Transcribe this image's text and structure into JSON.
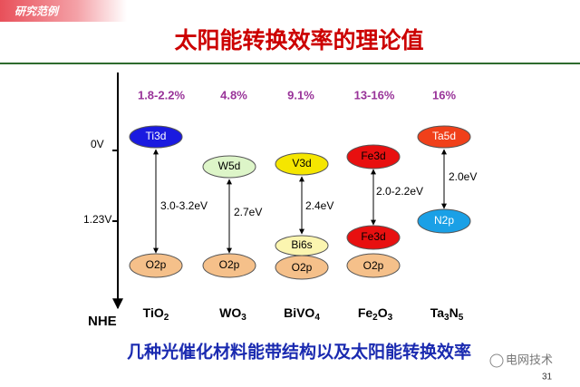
{
  "header": {
    "tag": "研究范例",
    "title": "太阳能转换效率的理论值"
  },
  "axis": {
    "levels": [
      "0V",
      "1.23V"
    ],
    "reference": "NHE"
  },
  "materials": [
    {
      "efficiency": "1.8-2.2%",
      "bands": [
        "Ti3d",
        "O2p"
      ],
      "gap": "3.0-3.2eV",
      "name": [
        "TiO",
        "2"
      ]
    },
    {
      "efficiency": "4.8%",
      "bands": [
        "W5d",
        "O2p"
      ],
      "gap": "2.7eV",
      "name": [
        "WO",
        "3"
      ]
    },
    {
      "efficiency": "9.1%",
      "bands": [
        "V3d",
        "Bi6s",
        "O2p"
      ],
      "gap": "2.4eV",
      "name": [
        "BiVO",
        "4"
      ]
    },
    {
      "efficiency": "13-16%",
      "bands": [
        "Fe3d",
        "Fe3d",
        "O2p"
      ],
      "gap": "2.0-2.2eV",
      "name": [
        "Fe",
        "2",
        "O",
        "3"
      ]
    },
    {
      "efficiency": "16%",
      "bands": [
        "Ta5d",
        "N2p"
      ],
      "gap": "2.0eV",
      "name": [
        "Ta",
        "3",
        "N",
        "5"
      ]
    }
  ],
  "caption": "几种光催化材料能带结构以及太阳能转换效率",
  "watermark": "电网技术",
  "page_number": "31"
}
